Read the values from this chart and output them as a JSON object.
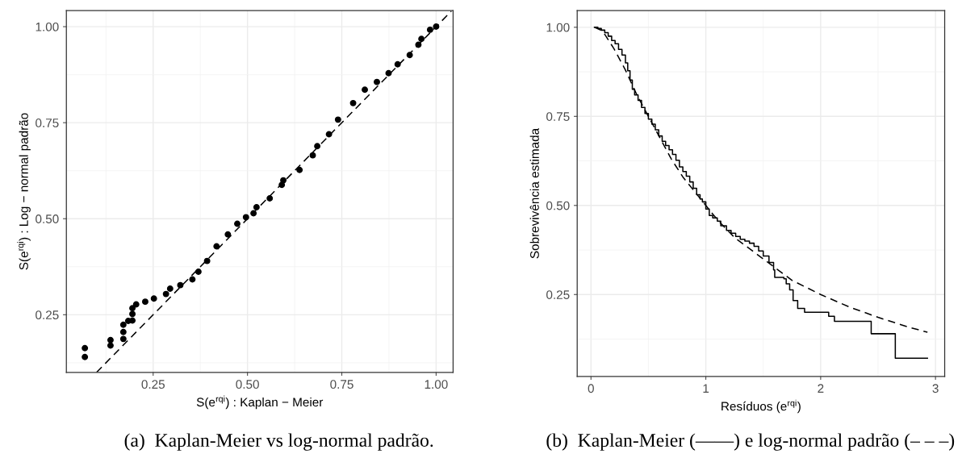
{
  "chart_data": [
    {
      "type": "scatter",
      "xlabel": "S(e$^{rqi}$) : Kaplan − Meier",
      "ylabel": "S(e$^{rqi}$) : Log − normal padrão",
      "xlim": [
        0.02,
        1.045
      ],
      "ylim": [
        0.1,
        1.042
      ],
      "xticks": [
        {
          "value": 0.25,
          "label": "0.25"
        },
        {
          "value": 0.5,
          "label": "0.50"
        },
        {
          "value": 0.75,
          "label": "0.75"
        },
        {
          "value": 1.0,
          "label": "1.00"
        }
      ],
      "yticks": [
        {
          "value": 0.25,
          "label": "0.25"
        },
        {
          "value": 0.5,
          "label": "0.50"
        },
        {
          "value": 0.75,
          "label": "0.75"
        },
        {
          "value": 1.0,
          "label": "1.00"
        }
      ],
      "grid": true,
      "marker": "circle",
      "annotations": [
        "(a)  Kaplan-Meier vs log-normal padrão."
      ],
      "series": [
        {
          "color": "#000000",
          "x": [
            0.069,
            0.069,
            0.137,
            0.137,
            0.171,
            0.171,
            0.171,
            0.184,
            0.195,
            0.195,
            0.195,
            0.205,
            0.229,
            0.252,
            0.284,
            0.295,
            0.322,
            0.354,
            0.37,
            0.393,
            0.418,
            0.448,
            0.473,
            0.496,
            0.516,
            0.524,
            0.559,
            0.591,
            0.595,
            0.638,
            0.673,
            0.685,
            0.716,
            0.74,
            0.78,
            0.811,
            0.843,
            0.874,
            0.898,
            0.93,
            0.953,
            0.961,
            0.984,
            1.0
          ],
          "values": [
            0.163,
            0.14,
            0.184,
            0.17,
            0.224,
            0.205,
            0.187,
            0.234,
            0.267,
            0.252,
            0.235,
            0.277,
            0.284,
            0.292,
            0.304,
            0.318,
            0.327,
            0.342,
            0.362,
            0.39,
            0.428,
            0.459,
            0.487,
            0.504,
            0.514,
            0.53,
            0.553,
            0.588,
            0.6,
            0.627,
            0.665,
            0.689,
            0.72,
            0.758,
            0.801,
            0.836,
            0.856,
            0.879,
            0.902,
            0.926,
            0.953,
            0.968,
            0.992,
            1.0
          ]
        },
        {
          "type": "line",
          "line_style": "dashed",
          "marker": "none",
          "color": "#000000",
          "x": [
            0.1,
            1.04
          ],
          "values": [
            0.1,
            1.04
          ]
        }
      ]
    },
    {
      "type": "line",
      "xlabel": "Resíduos (e$^{rqi}$)",
      "ylabel": "Sobrevivência estimada",
      "xlim": [
        -0.12,
        3.08
      ],
      "ylim": [
        0.02,
        1.047
      ],
      "xticks": [
        0,
        1,
        2,
        3
      ],
      "yticks": [
        {
          "value": 0.25,
          "label": "0.25"
        },
        {
          "value": 0.5,
          "label": "0.50"
        },
        {
          "value": 0.75,
          "label": "0.75"
        },
        {
          "value": 1.0,
          "label": "1.00"
        }
      ],
      "grid": true,
      "marker": "none",
      "annotations": [
        "(b)  Kaplan-Meier (——) e log-normal padrão (– – –)"
      ],
      "series": [
        {
          "type": "step",
          "line_style": "solid",
          "color": "#000000",
          "x": [
            0.03,
            0.06,
            0.09,
            0.12,
            0.15,
            0.18,
            0.21,
            0.24,
            0.27,
            0.3,
            0.32,
            0.34,
            0.36,
            0.38,
            0.41,
            0.44,
            0.47,
            0.5,
            0.53,
            0.56,
            0.59,
            0.62,
            0.65,
            0.68,
            0.71,
            0.74,
            0.77,
            0.8,
            0.83,
            0.86,
            0.89,
            0.92,
            0.95,
            0.97,
            1.0,
            1.03,
            1.06,
            1.1,
            1.13,
            1.18,
            1.22,
            1.26,
            1.3,
            1.34,
            1.38,
            1.42,
            1.46,
            1.5,
            1.55,
            1.59,
            1.6,
            1.68,
            1.7,
            1.73,
            1.76,
            1.8,
            1.86,
            2.07,
            2.12,
            2.44,
            2.65,
            2.93
          ],
          "values": [
            1.0,
            0.997,
            0.992,
            0.985,
            0.975,
            0.963,
            0.954,
            0.938,
            0.922,
            0.9,
            0.878,
            0.852,
            0.826,
            0.81,
            0.795,
            0.775,
            0.758,
            0.742,
            0.728,
            0.712,
            0.695,
            0.68,
            0.668,
            0.656,
            0.643,
            0.627,
            0.608,
            0.595,
            0.582,
            0.566,
            0.548,
            0.53,
            0.518,
            0.51,
            0.49,
            0.472,
            0.465,
            0.456,
            0.443,
            0.43,
            0.422,
            0.413,
            0.405,
            0.4,
            0.394,
            0.385,
            0.372,
            0.358,
            0.34,
            0.319,
            0.298,
            0.294,
            0.28,
            0.263,
            0.233,
            0.211,
            0.2,
            0.189,
            0.175,
            0.14,
            0.071,
            0.071
          ]
        },
        {
          "type": "line",
          "line_style": "dashed",
          "color": "#000000",
          "x": [
            0.03,
            0.1,
            0.2,
            0.3,
            0.4,
            0.5,
            0.6,
            0.7,
            0.8,
            0.9,
            1.0,
            1.1,
            1.25,
            1.5,
            1.75,
            2.0,
            2.25,
            2.5,
            2.75,
            2.93
          ],
          "values": [
            1.0,
            0.99,
            0.94,
            0.88,
            0.81,
            0.75,
            0.69,
            0.63,
            0.58,
            0.54,
            0.5,
            0.46,
            0.41,
            0.35,
            0.29,
            0.25,
            0.215,
            0.186,
            0.16,
            0.144
          ]
        }
      ]
    }
  ]
}
